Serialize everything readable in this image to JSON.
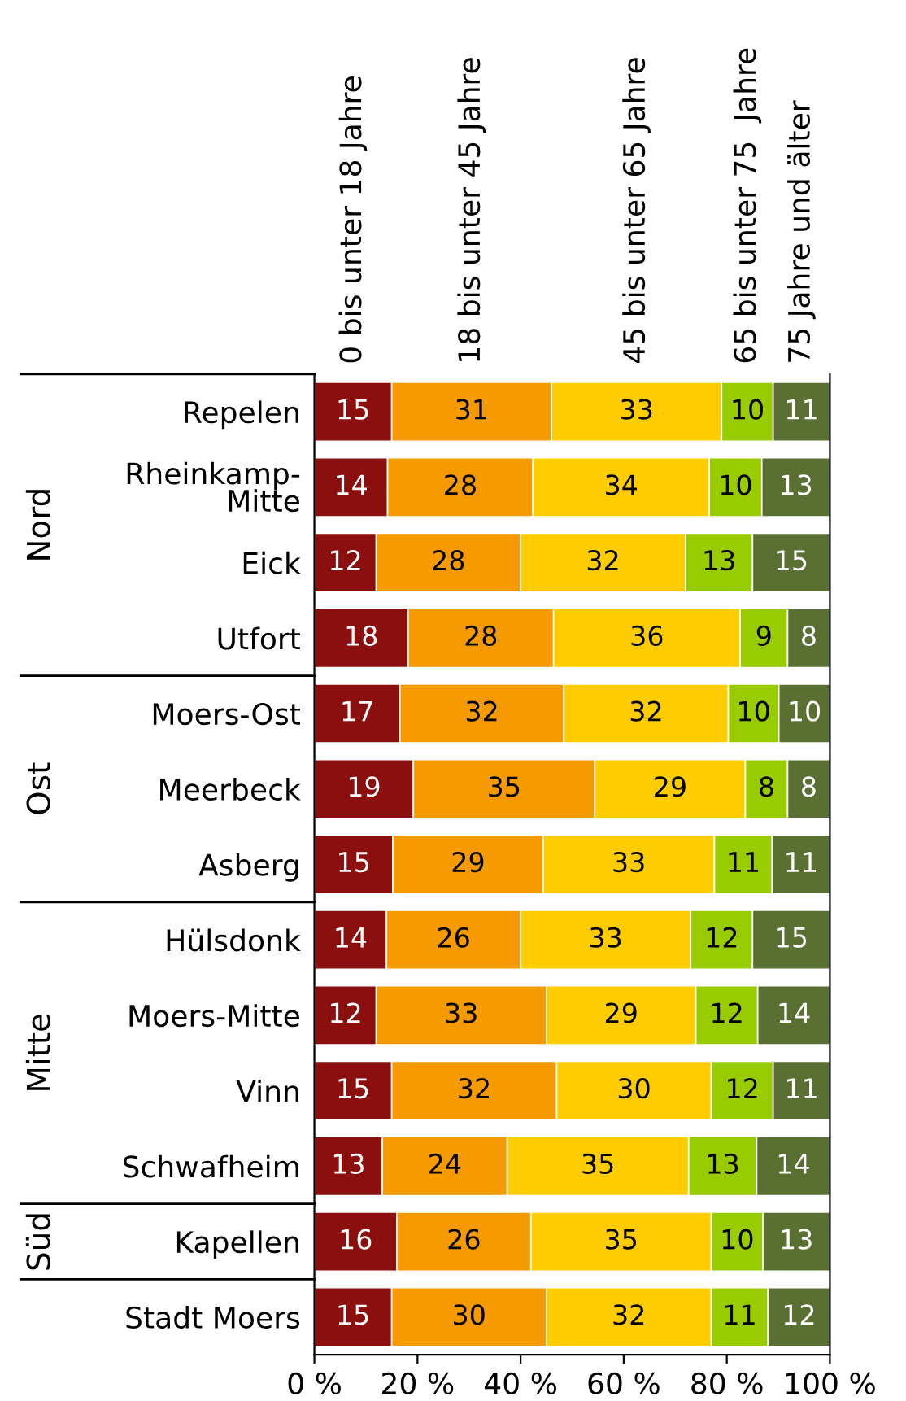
{
  "chart_data": {
    "type": "bar",
    "orientation": "horizontal",
    "stacked": true,
    "legend": "top",
    "grid": false,
    "categories": [
      "Repelen",
      "Rheinkamp-\nMitte",
      "Eick",
      "Utfort",
      "Moers-Ost",
      "Meerbeck",
      "Asberg",
      "Hülsdonk",
      "Moers-Mitte",
      "Vinn",
      "Schwafheim",
      "Kapellen",
      "Stadt Moers"
    ],
    "series": [
      {
        "name": "0 bis unter 18 Jahre",
        "color": "#8b0f0f",
        "values": [
          15,
          14.2,
          12,
          18.2,
          16.6,
          19.2,
          15.2,
          14,
          12,
          15,
          13.2,
          16,
          15
        ],
        "value_labels": [
          "15",
          "14",
          "12",
          "18",
          "17",
          "19",
          "15",
          "14",
          "12",
          "15",
          "13",
          "16",
          "15"
        ]
      },
      {
        "name": "18 bis unter 45 Jahre",
        "color": "#f59a00",
        "values": [
          31,
          28.2,
          28,
          28.2,
          31.8,
          35.2,
          29.2,
          26,
          33,
          32,
          24.2,
          26,
          30
        ],
        "value_labels": [
          "31",
          "28",
          "28",
          "28",
          "32",
          "35",
          "29",
          "26",
          "33",
          "32",
          "24",
          "26",
          "30"
        ]
      },
      {
        "name": "45 bis unter 65 Jahre",
        "color": "#ffcc00",
        "values": [
          33,
          34.2,
          32,
          36.2,
          31.9,
          29.2,
          33.2,
          33,
          29,
          30,
          35.2,
          35,
          32
        ],
        "value_labels": [
          "33",
          "34",
          "32",
          "36",
          "32",
          "29",
          "33",
          "33",
          "29",
          "30",
          "35",
          "35",
          "32"
        ]
      },
      {
        "name": "65 bis unter 75  Jahre",
        "color": "#99cc00",
        "values": [
          10,
          10.2,
          13,
          9.2,
          9.8,
          8.2,
          11.2,
          12,
          12,
          12,
          13.2,
          10,
          11
        ],
        "value_labels": [
          "10",
          "10",
          "13",
          "9",
          "10",
          "8",
          "11",
          "12",
          "12",
          "12",
          "13",
          "10",
          "11"
        ]
      },
      {
        "name": "75 Jahre und älter",
        "color": "#5a7033",
        "values": [
          11,
          13.2,
          15,
          8.2,
          9.9,
          8.2,
          11.2,
          15,
          14,
          11,
          14.2,
          13,
          12
        ],
        "value_labels": [
          "11",
          "13",
          "15",
          "8",
          "10",
          "8",
          "11",
          "15",
          "14",
          "11",
          "14",
          "13",
          "12"
        ]
      }
    ],
    "xlim": [
      0,
      100
    ],
    "xticks": [
      {
        "value": 0,
        "label": "0 %"
      },
      {
        "value": 20,
        "label": "20 %"
      },
      {
        "value": 40,
        "label": "40 %"
      },
      {
        "value": 60,
        "label": "60 %"
      },
      {
        "value": 80,
        "label": "80 %"
      },
      {
        "value": 100,
        "label": "100 %"
      }
    ],
    "annotations": [
      "Nord",
      "Ost",
      "Mitte",
      "Süd"
    ]
  }
}
